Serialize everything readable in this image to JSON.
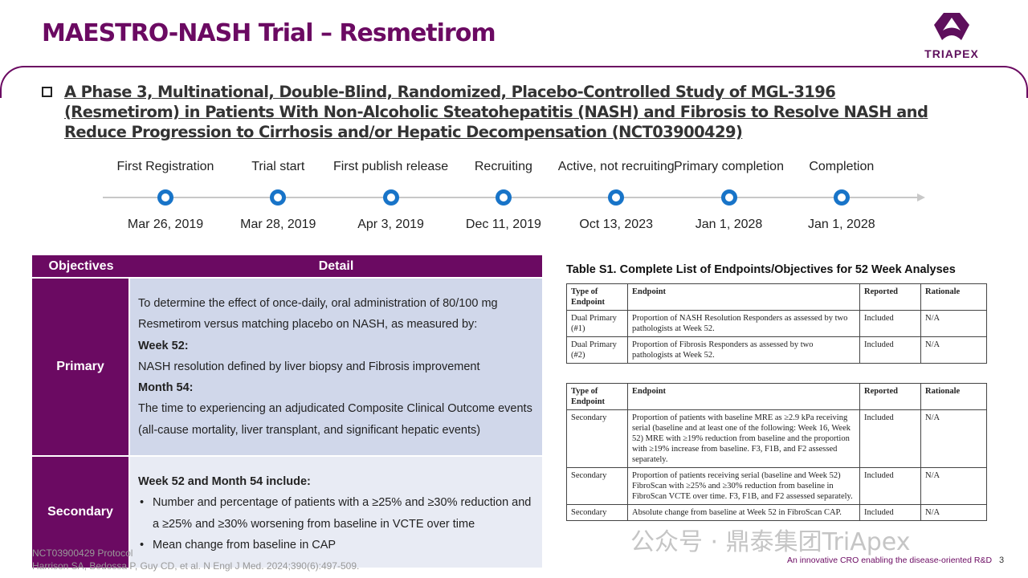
{
  "title": "MAESTRO-NASH Trial – Resmetirom",
  "logo": {
    "text": "TRIAPEX"
  },
  "heading": "A Phase 3, Multinational, Double-Blind, Randomized, Placebo-Controlled Study of MGL-3196 (Resmetirom) in Patients With Non-Alcoholic Steatohepatitis (NASH) and Fibrosis to Resolve NASH and Reduce Progression to Cirrhosis and/or Hepatic Decompensation (NCT03900429)",
  "timeline": [
    {
      "label": "First Registration",
      "date": "Mar 26, 2019"
    },
    {
      "label": "Trial start",
      "date": "Mar 28, 2019"
    },
    {
      "label": "First publish release",
      "date": "Apr 3, 2019"
    },
    {
      "label": "Recruiting",
      "date": "Dec 11, 2019"
    },
    {
      "label": "Active, not recruiting",
      "date": "Oct 13, 2023"
    },
    {
      "label": "Primary completion",
      "date": "Jan 1, 2028"
    },
    {
      "label": "Completion",
      "date": "Jan 1, 2028"
    }
  ],
  "objectives": {
    "headers": [
      "Objectives",
      "Detail"
    ],
    "primary": {
      "label": "Primary",
      "intro": "To determine the effect of once-daily, oral administration of 80/100 mg Resmetirom versus matching placebo on NASH, as measured by:",
      "w52_label": "Week 52:",
      "w52_text": "NASH resolution defined by liver biopsy and  Fibrosis improvement",
      "m54_label": "Month 54:",
      "m54_text": "The time to experiencing an adjudicated Composite Clinical Outcome events (all-cause mortality, liver transplant, and significant hepatic events)"
    },
    "secondary": {
      "label": "Secondary",
      "intro": "Week 52 and Month 54 include:",
      "bullets": [
        "Number and percentage of patients with a ≥25% and ≥30% reduction and a ≥25% and ≥30% worsening from baseline in VCTE over time",
        "Mean change from baseline in CAP"
      ]
    }
  },
  "endpoints": {
    "title": "Table S1. Complete List of Endpoints/Objectives for 52 Week Analyses",
    "headers": [
      "Type of Endpoint",
      "Endpoint",
      "Reported",
      "Rationale"
    ],
    "table1": [
      [
        "Dual Primary (#1)",
        "Proportion of NASH Resolution Responders as assessed by two pathologists at Week 52.",
        "Included",
        "N/A"
      ],
      [
        "Dual Primary (#2)",
        "Proportion of Fibrosis Responders as assessed by two pathologists at Week 52.",
        "Included",
        "N/A"
      ]
    ],
    "table2": [
      [
        "Secondary",
        "Proportion of patients with baseline MRE as ≥2.9 kPa receiving serial (baseline and at least one of the following: Week 16, Week 52) MRE with ≥19% reduction from baseline and the proportion with ≥19% increase from baseline.  F3, F1B, and F2 assessed separately.",
        "Included",
        "N/A"
      ],
      [
        "Secondary",
        "Proportion of patients receiving serial (baseline and Week 52) FibroScan with ≥25% and ≥30% reduction from baseline in FibroScan VCTE over time.  F3, F1B, and F2 assessed separately.",
        "Included",
        "N/A"
      ],
      [
        "Secondary",
        "Absolute change from baseline at Week 52 in FibroScan CAP.",
        "Included",
        "N/A"
      ]
    ]
  },
  "footer": {
    "ref1": "NCT03900429 Protocol",
    "ref2": "Harrison SA, Bedossa P, Guy CD, et al. N Engl J Med. 2024;390(6):497-509.",
    "tagline": "An innovative CRO enabling the disease-oriented R&D",
    "page": "3",
    "watermark": "公众号 · 鼎泰集团TriApex"
  }
}
